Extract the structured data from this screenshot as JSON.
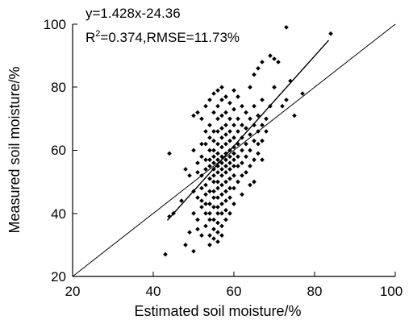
{
  "chart_data": {
    "type": "scatter",
    "title": "",
    "xlabel": "Estimated soil moisture/%",
    "ylabel": "Measured soil moisture/%",
    "xlim": [
      20,
      100
    ],
    "ylim": [
      20,
      100
    ],
    "xticks": [
      "20",
      "40",
      "60",
      "80",
      "100"
    ],
    "yticks": [
      "20",
      "40",
      "60",
      "80",
      "100"
    ],
    "grid": false,
    "legend": "none",
    "annotations": {
      "equation": "y=1.428x-24.36",
      "stats_prefix": "R",
      "stats_sup": "2",
      "stats_suffix": "=0.374,RMSE=11.73%"
    },
    "lines": [
      {
        "role": "1:1 line",
        "x": [
          20,
          100
        ],
        "y": [
          20,
          100
        ]
      },
      {
        "role": "regression fit",
        "x": [
          43.5,
          83.5
        ],
        "y": [
          37.8,
          94.9
        ]
      }
    ],
    "points": [
      [
        43,
        27
      ],
      [
        44,
        59
      ],
      [
        44,
        39
      ],
      [
        45,
        40
      ],
      [
        47,
        44
      ],
      [
        48,
        30
      ],
      [
        48,
        54
      ],
      [
        49,
        52
      ],
      [
        49,
        34
      ],
      [
        50,
        71
      ],
      [
        50,
        28
      ],
      [
        50,
        60
      ],
      [
        50,
        47
      ],
      [
        50,
        40
      ],
      [
        51,
        72
      ],
      [
        51,
        56
      ],
      [
        51,
        53
      ],
      [
        51,
        35
      ],
      [
        51,
        45
      ],
      [
        51,
        38
      ],
      [
        52,
        70
      ],
      [
        52,
        62
      ],
      [
        52,
        58
      ],
      [
        52,
        52
      ],
      [
        52,
        48
      ],
      [
        52,
        42
      ],
      [
        52,
        33
      ],
      [
        52,
        44
      ],
      [
        53,
        74
      ],
      [
        53,
        66
      ],
      [
        53,
        62
      ],
      [
        53,
        57
      ],
      [
        53,
        54
      ],
      [
        53,
        49
      ],
      [
        53,
        46
      ],
      [
        53,
        43
      ],
      [
        53,
        40
      ],
      [
        53,
        36
      ],
      [
        54,
        76
      ],
      [
        54,
        68
      ],
      [
        54,
        64
      ],
      [
        54,
        60
      ],
      [
        54,
        57
      ],
      [
        54,
        55
      ],
      [
        54,
        51
      ],
      [
        54,
        47
      ],
      [
        54,
        43
      ],
      [
        54,
        40
      ],
      [
        54,
        38
      ],
      [
        54,
        33
      ],
      [
        54,
        30
      ],
      [
        55,
        78
      ],
      [
        55,
        72
      ],
      [
        55,
        66
      ],
      [
        55,
        63
      ],
      [
        55,
        60
      ],
      [
        55,
        58
      ],
      [
        55,
        56
      ],
      [
        55,
        54
      ],
      [
        55,
        52
      ],
      [
        55,
        50
      ],
      [
        55,
        47
      ],
      [
        55,
        45
      ],
      [
        55,
        42
      ],
      [
        55,
        38
      ],
      [
        55,
        35
      ],
      [
        55,
        32
      ],
      [
        56,
        79
      ],
      [
        56,
        74
      ],
      [
        56,
        70
      ],
      [
        56,
        66
      ],
      [
        56,
        62
      ],
      [
        56,
        59
      ],
      [
        56,
        57
      ],
      [
        56,
        55
      ],
      [
        56,
        53
      ],
      [
        56,
        50
      ],
      [
        56,
        48
      ],
      [
        56,
        45
      ],
      [
        56,
        42
      ],
      [
        56,
        40
      ],
      [
        56,
        37
      ],
      [
        56,
        34
      ],
      [
        56,
        31
      ],
      [
        57,
        80
      ],
      [
        57,
        76
      ],
      [
        57,
        71
      ],
      [
        57,
        67
      ],
      [
        57,
        64
      ],
      [
        57,
        61
      ],
      [
        57,
        58
      ],
      [
        57,
        56
      ],
      [
        57,
        54
      ],
      [
        57,
        52
      ],
      [
        57,
        49
      ],
      [
        57,
        46
      ],
      [
        57,
        43
      ],
      [
        57,
        40
      ],
      [
        57,
        36
      ],
      [
        57,
        33
      ],
      [
        58,
        77
      ],
      [
        58,
        72
      ],
      [
        58,
        68
      ],
      [
        58,
        65
      ],
      [
        58,
        62
      ],
      [
        58,
        59
      ],
      [
        58,
        57
      ],
      [
        58,
        55
      ],
      [
        58,
        53
      ],
      [
        58,
        50
      ],
      [
        58,
        47
      ],
      [
        58,
        44
      ],
      [
        58,
        41
      ],
      [
        58,
        38
      ],
      [
        59,
        75
      ],
      [
        59,
        70
      ],
      [
        59,
        66
      ],
      [
        59,
        63
      ],
      [
        59,
        60
      ],
      [
        59,
        58
      ],
      [
        59,
        56
      ],
      [
        59,
        54
      ],
      [
        59,
        51
      ],
      [
        59,
        48
      ],
      [
        59,
        45
      ],
      [
        59,
        40
      ],
      [
        60,
        79
      ],
      [
        60,
        73
      ],
      [
        60,
        68
      ],
      [
        60,
        64
      ],
      [
        60,
        61
      ],
      [
        60,
        59
      ],
      [
        60,
        57
      ],
      [
        60,
        55
      ],
      [
        60,
        52
      ],
      [
        60,
        48
      ],
      [
        60,
        43
      ],
      [
        61,
        77
      ],
      [
        61,
        70
      ],
      [
        61,
        66
      ],
      [
        61,
        62
      ],
      [
        61,
        58
      ],
      [
        61,
        55
      ],
      [
        61,
        50
      ],
      [
        62,
        74
      ],
      [
        62,
        68
      ],
      [
        62,
        64
      ],
      [
        62,
        60
      ],
      [
        62,
        56
      ],
      [
        62,
        52
      ],
      [
        62,
        46
      ],
      [
        63,
        72
      ],
      [
        63,
        67
      ],
      [
        63,
        62
      ],
      [
        63,
        58
      ],
      [
        63,
        53
      ],
      [
        64,
        80
      ],
      [
        64,
        70
      ],
      [
        64,
        65
      ],
      [
        64,
        60
      ],
      [
        64,
        55
      ],
      [
        64,
        49
      ],
      [
        65,
        84
      ],
      [
        65,
        74
      ],
      [
        65,
        68
      ],
      [
        65,
        63
      ],
      [
        65,
        57
      ],
      [
        65,
        50
      ],
      [
        66,
        86
      ],
      [
        66,
        71
      ],
      [
        66,
        66
      ],
      [
        66,
        62
      ],
      [
        66,
        59
      ],
      [
        67,
        88
      ],
      [
        67,
        76
      ],
      [
        67,
        68
      ],
      [
        67,
        63
      ],
      [
        67,
        57
      ],
      [
        68,
        70
      ],
      [
        68,
        66
      ],
      [
        69,
        90
      ],
      [
        69,
        74
      ],
      [
        70,
        89
      ],
      [
        70,
        80
      ],
      [
        71,
        88
      ],
      [
        72,
        74
      ],
      [
        73,
        99
      ],
      [
        73,
        76
      ],
      [
        74,
        82
      ],
      [
        75,
        71
      ],
      [
        77,
        78
      ],
      [
        84,
        97
      ]
    ]
  }
}
